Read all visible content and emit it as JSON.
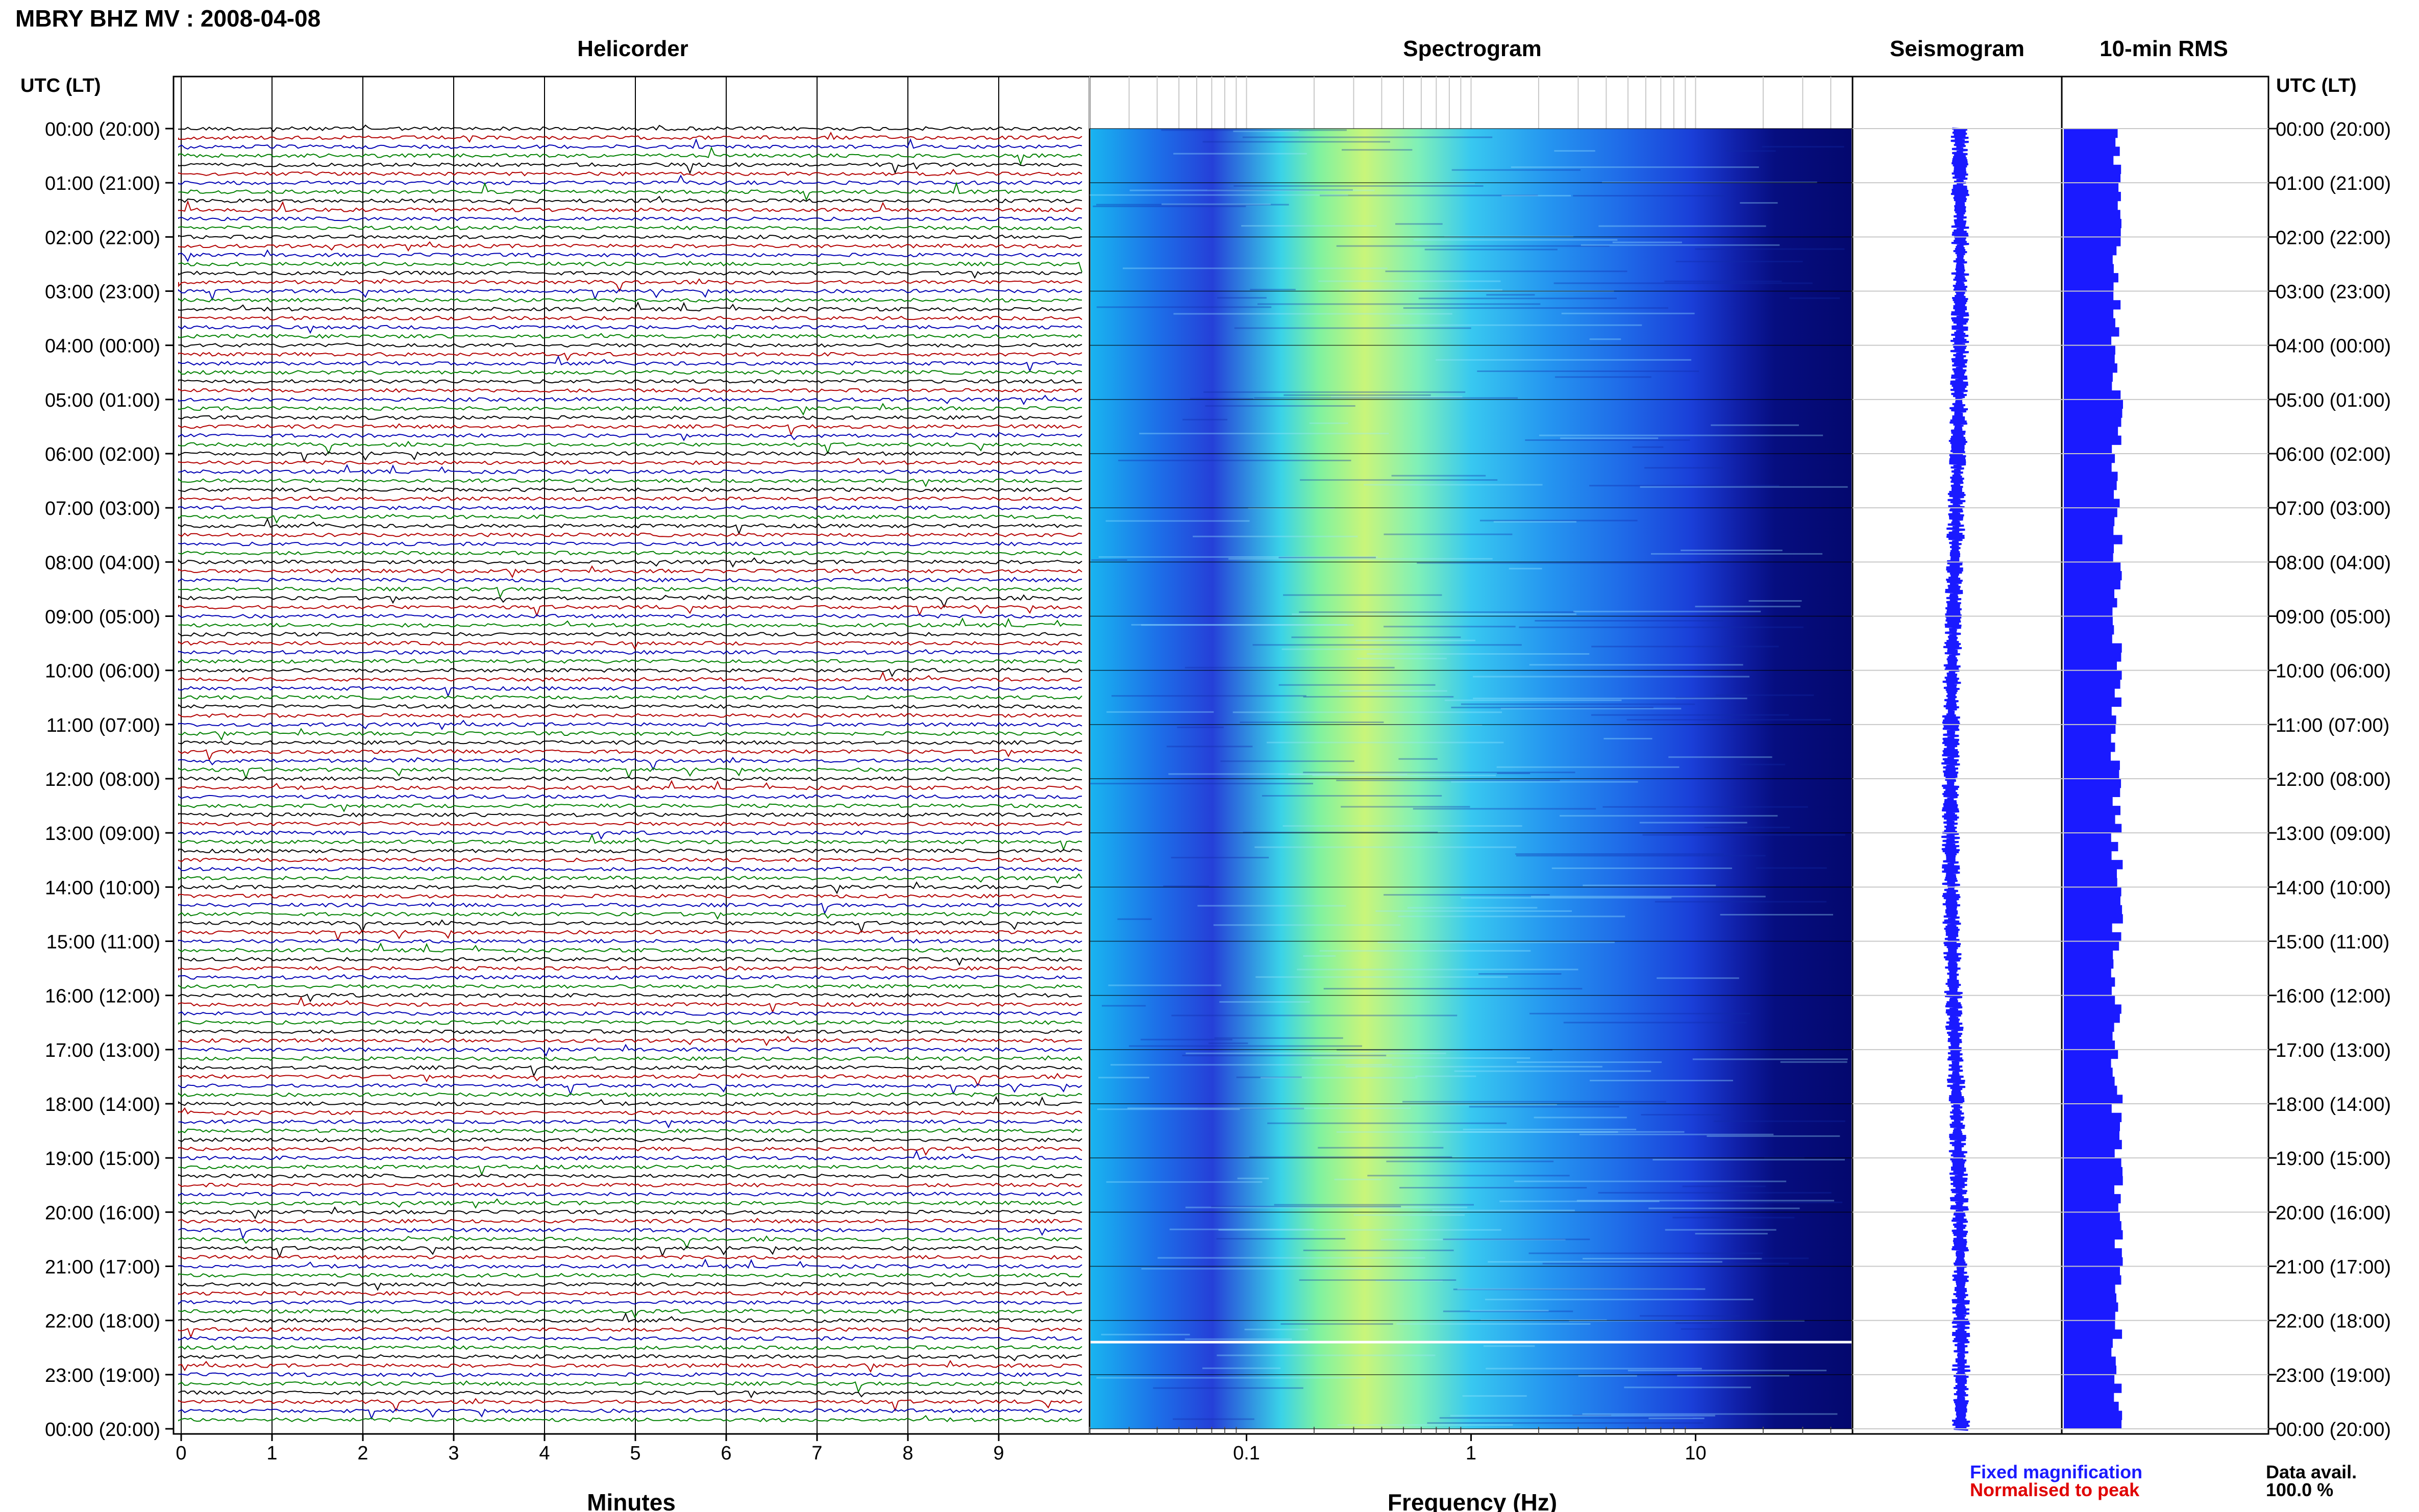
{
  "header": {
    "station_title": "MBRY BHZ MV : 2008-04-08",
    "utc_lt_left": "UTC (LT)",
    "utc_lt_right": "UTC (LT)"
  },
  "panels": {
    "helicorder": "Helicorder",
    "spectrogram": "Spectrogram",
    "seismogram": "Seismogram",
    "rms": "10-min RMS"
  },
  "time_labels": [
    "00:00 (20:00)",
    "01:00 (21:00)",
    "02:00 (22:00)",
    "03:00 (23:00)",
    "04:00 (00:00)",
    "05:00 (01:00)",
    "06:00 (02:00)",
    "07:00 (03:00)",
    "08:00 (04:00)",
    "09:00 (05:00)",
    "10:00 (06:00)",
    "11:00 (07:00)",
    "12:00 (08:00)",
    "13:00 (09:00)",
    "14:00 (10:00)",
    "15:00 (11:00)",
    "16:00 (12:00)",
    "17:00 (13:00)",
    "18:00 (14:00)",
    "19:00 (15:00)",
    "20:00 (16:00)",
    "21:00 (17:00)",
    "22:00 (18:00)",
    "23:00 (19:00)",
    "00:00 (20:00)"
  ],
  "legend": {
    "fixed": "Fixed magnification",
    "normalised": "Normalised to peak",
    "data_avail_label": "Data avail.",
    "data_avail_value": "100.0 %"
  },
  "colors": {
    "fixed": "#1a1aff",
    "normalised": "#e00000",
    "trace_cycle": [
      "#000000",
      "#b30000",
      "#0000b3",
      "#008000"
    ]
  },
  "chart_data": [
    {
      "type": "line",
      "name": "helicorder",
      "xlabel": "Minutes",
      "xlim": [
        0,
        10
      ],
      "x_ticks": [
        "0",
        "1",
        "2",
        "3",
        "4",
        "5",
        "6",
        "7",
        "8",
        "9"
      ],
      "ylim_hours": [
        0,
        24
      ],
      "traces_per_hour": 6
    },
    {
      "type": "heatmap",
      "name": "spectrogram",
      "xlabel": "Frequency (Hz)",
      "x_scale": "log",
      "xlim": [
        0.02,
        50
      ],
      "x_ticks": [
        "0.1",
        "1",
        "10"
      ],
      "peak_band_hz": [
        0.2,
        0.6
      ],
      "gap_hour": 22.4
    },
    {
      "type": "line",
      "name": "seismogram",
      "ylim_hours": [
        0,
        24
      ]
    },
    {
      "type": "bar",
      "name": "10-min RMS",
      "ylim_hours": [
        0,
        24
      ]
    }
  ]
}
